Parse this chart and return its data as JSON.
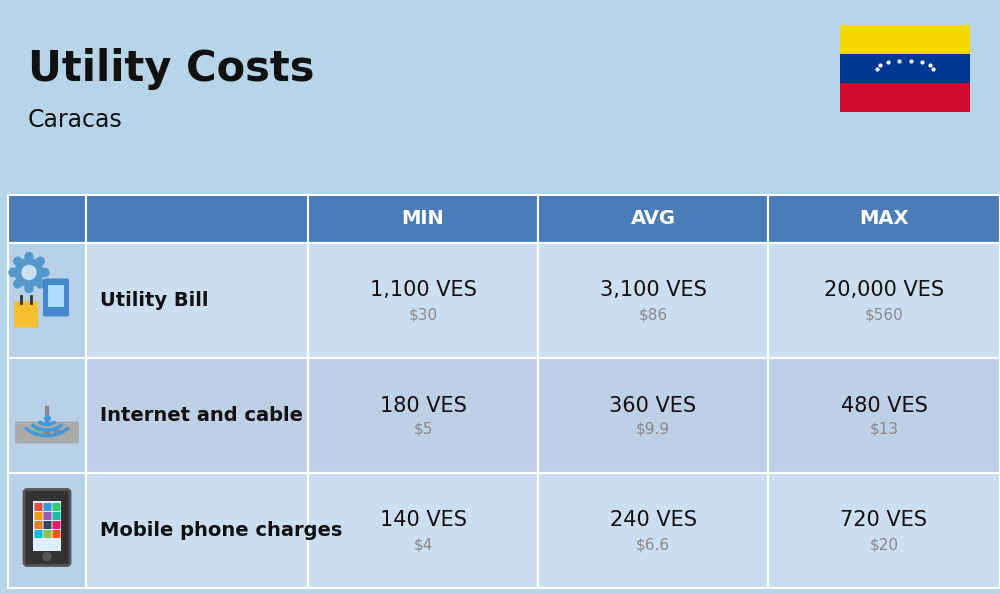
{
  "title": "Utility Costs",
  "subtitle": "Caracas",
  "background_color": "#b8d4e8",
  "header_color": "#4a7db5",
  "header_text_color": "#ffffff",
  "row_color_odd": "#ccdff0",
  "row_color_even": "#bdd0e6",
  "icon_col_color": "#b8d0e8",
  "border_color": "#ffffff",
  "text_color": "#111111",
  "subtext_color": "#888888",
  "rows": [
    {
      "label": "Utility Bill",
      "min_ves": "1,100 VES",
      "min_usd": "$30",
      "avg_ves": "3,100 VES",
      "avg_usd": "$86",
      "max_ves": "20,000 VES",
      "max_usd": "$560",
      "icon": "utility"
    },
    {
      "label": "Internet and cable",
      "min_ves": "180 VES",
      "min_usd": "$5",
      "avg_ves": "360 VES",
      "avg_usd": "$9.9",
      "max_ves": "480 VES",
      "max_usd": "$13",
      "icon": "internet"
    },
    {
      "label": "Mobile phone charges",
      "min_ves": "140 VES",
      "min_usd": "$4",
      "avg_ves": "240 VES",
      "avg_usd": "$6.6",
      "max_ves": "720 VES",
      "max_usd": "$20",
      "icon": "mobile"
    }
  ],
  "flag_yellow": "#f5d800",
  "flag_blue": "#003893",
  "flag_red": "#cf0a2c",
  "title_fontsize": 30,
  "subtitle_fontsize": 17,
  "header_fontsize": 14,
  "label_fontsize": 14,
  "value_fontsize": 15,
  "subvalue_fontsize": 11
}
